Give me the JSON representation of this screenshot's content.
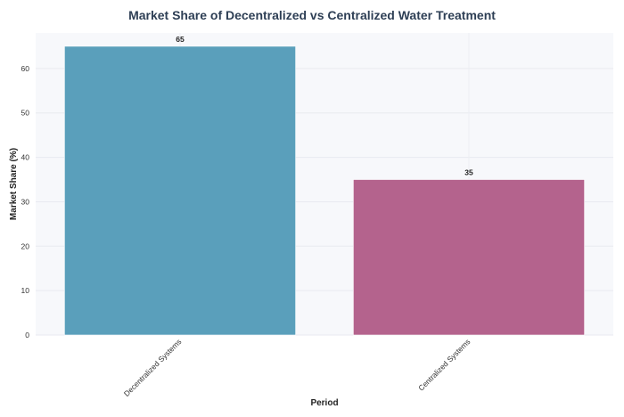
{
  "chart_data": {
    "type": "bar",
    "title": "Market Share of Decentralized vs Centralized Water Treatment",
    "xlabel": "Period",
    "ylabel": "Market Share (%)",
    "categories": [
      "Decentralized Systems",
      "Centralized Systems"
    ],
    "values": [
      65,
      35
    ],
    "data_labels": [
      "65",
      "35"
    ],
    "colors": [
      "#5a9fbb",
      "#b4638d"
    ],
    "ylim": [
      0,
      68
    ],
    "yticks": [
      0,
      10,
      20,
      30,
      40,
      50,
      60
    ],
    "grid": true,
    "legend": "none",
    "plot_background": "#f7f8fb"
  }
}
